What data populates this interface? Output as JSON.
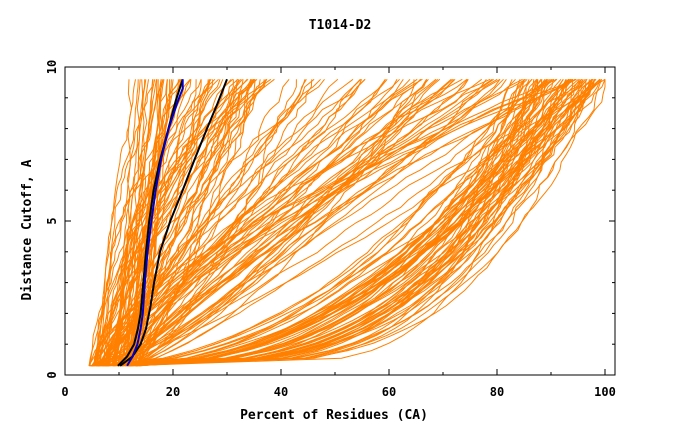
{
  "chart_data": {
    "type": "line",
    "title": "T1014-D2",
    "xlabel": "Percent of Residues (CA)",
    "ylabel": "Distance Cutoff, A",
    "xlim": [
      0,
      100
    ],
    "ylim": [
      0,
      10
    ],
    "xticks": [
      0,
      20,
      40,
      60,
      80,
      100
    ],
    "yticks": [
      0,
      5,
      10
    ],
    "xtick_labels": [
      "0",
      "20",
      "40",
      "60",
      "80",
      "100"
    ],
    "ytick_labels": [
      "0",
      "5",
      "10"
    ],
    "grid": false,
    "colors": {
      "orange": "#ff8000",
      "black": "#000000",
      "blue": "#0000c8"
    },
    "highlighted_series": [
      {
        "name": "black-1",
        "color": "#000000",
        "x": [
          9.8,
          11.5,
          12.8,
          13.5,
          14.0,
          14.5,
          15.0,
          15.6,
          16.4,
          17.5,
          19.0,
          20.5,
          21.8
        ],
        "y": [
          0.3,
          0.6,
          1.0,
          1.5,
          2.0,
          3.0,
          4.0,
          5.0,
          6.0,
          6.9,
          7.9,
          8.9,
          9.6
        ]
      },
      {
        "name": "black-2",
        "color": "#000000",
        "x": [
          10.2,
          12.5,
          14.0,
          15.0,
          15.8,
          16.5,
          17.6,
          19.5,
          21.8,
          24.0,
          26.3,
          28.2,
          30.0
        ],
        "y": [
          0.3,
          0.6,
          1.0,
          1.5,
          2.2,
          3.0,
          4.0,
          5.0,
          6.0,
          7.0,
          8.0,
          8.8,
          9.6
        ]
      },
      {
        "name": "blue",
        "color": "#0000c8",
        "x": [
          11.5,
          12.5,
          13.4,
          14.0,
          14.4,
          14.8,
          15.3,
          16.0,
          16.8,
          17.8,
          19.2,
          20.7,
          21.8,
          21.8
        ],
        "y": [
          0.3,
          0.6,
          1.0,
          1.5,
          2.0,
          3.0,
          4.0,
          5.0,
          6.0,
          7.0,
          8.0,
          8.8,
          9.3,
          9.6
        ]
      }
    ],
    "orange_family_bounds": {
      "x_start_range": [
        4.5,
        14
      ],
      "x_end_range": [
        11.5,
        100
      ],
      "y_range": [
        0.3,
        9.6
      ],
      "curve_count": 200
    }
  }
}
